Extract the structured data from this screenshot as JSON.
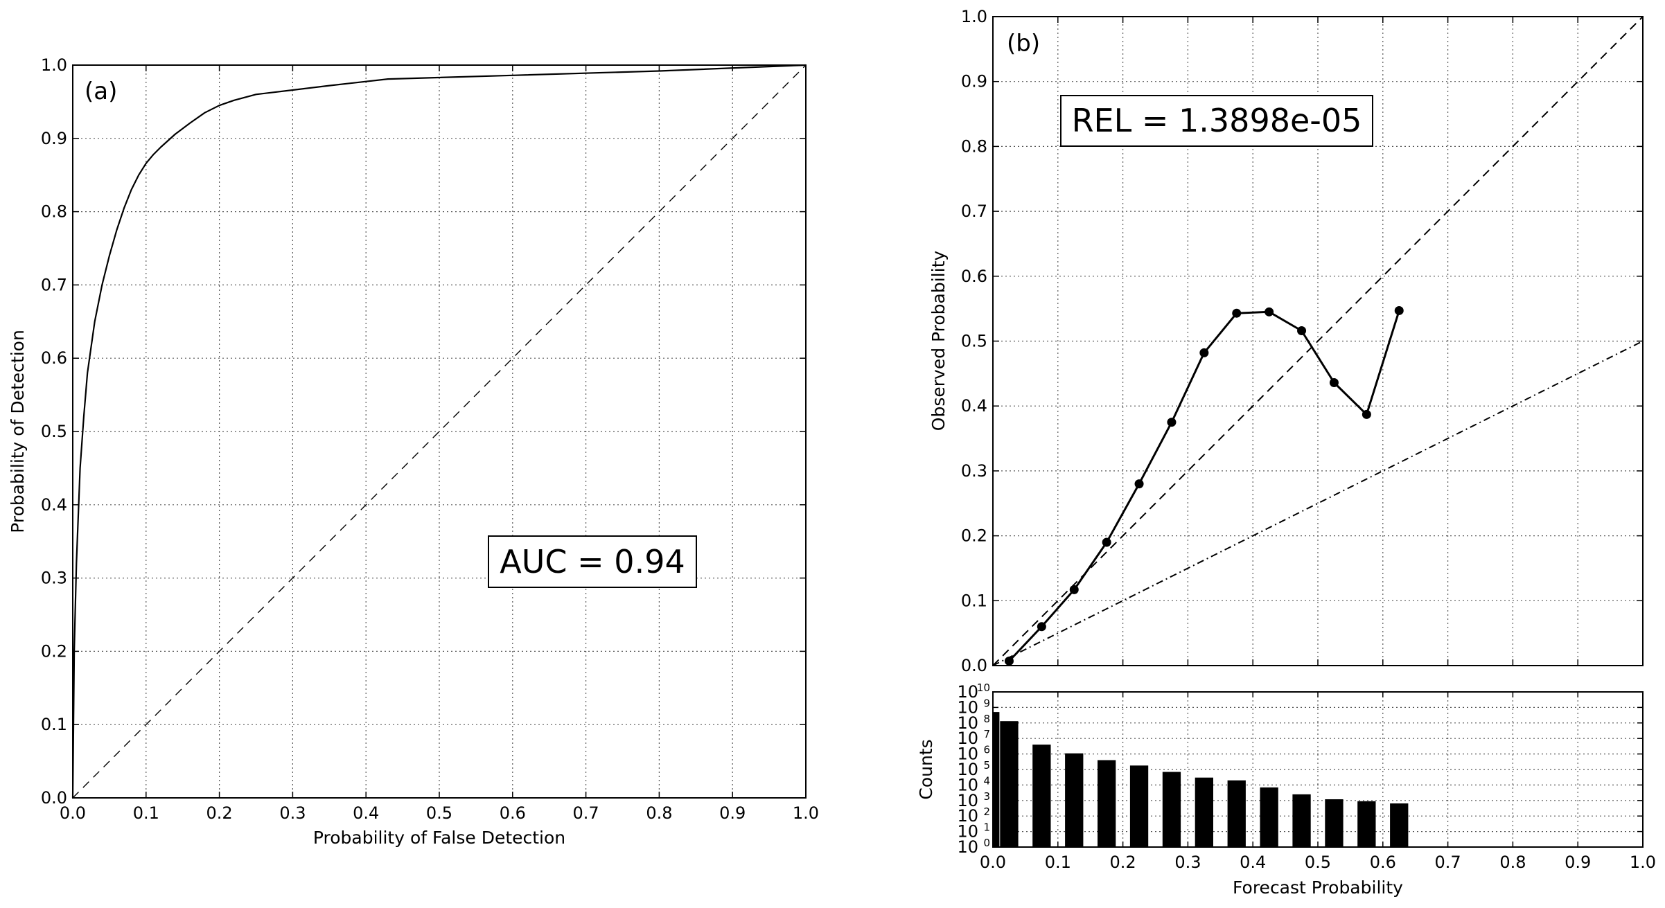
{
  "chart_data": [
    {
      "panel": "(a)",
      "type": "line",
      "xlabel": "Probability of False Detection",
      "ylabel": "Probability of Detection",
      "xlim": [
        0.0,
        1.0
      ],
      "ylim": [
        0.0,
        1.0
      ],
      "xticks": [
        "0.0",
        "0.1",
        "0.2",
        "0.3",
        "0.4",
        "0.5",
        "0.6",
        "0.7",
        "0.8",
        "0.9",
        "1.0"
      ],
      "yticks": [
        "0.0",
        "0.1",
        "0.2",
        "0.3",
        "0.4",
        "0.5",
        "0.6",
        "0.7",
        "0.8",
        "0.9",
        "1.0"
      ],
      "grid": true,
      "annotation": "AUC = 0.94",
      "series": [
        {
          "style": "solid",
          "x": [
            0.0,
            0.002,
            0.005,
            0.01,
            0.015,
            0.02,
            0.03,
            0.04,
            0.05,
            0.06,
            0.07,
            0.08,
            0.09,
            0.1,
            0.11,
            0.12,
            0.14,
            0.16,
            0.18,
            0.2,
            0.22,
            0.25,
            0.3,
            0.35,
            0.43,
            0.6,
            0.8,
            1.0
          ],
          "y": [
            0.0,
            0.2,
            0.32,
            0.45,
            0.52,
            0.58,
            0.65,
            0.7,
            0.74,
            0.775,
            0.805,
            0.83,
            0.85,
            0.866,
            0.878,
            0.888,
            0.906,
            0.921,
            0.935,
            0.945,
            0.952,
            0.96,
            0.966,
            0.972,
            0.981,
            0.986,
            0.992,
            1.0
          ]
        },
        {
          "style": "dashed",
          "x": [
            0.0,
            1.0
          ],
          "y": [
            0.0,
            1.0
          ]
        }
      ]
    },
    {
      "panel": "(b)",
      "type": "line",
      "ylabel": "Observed Probability",
      "xlim": [
        0.0,
        1.0
      ],
      "ylim": [
        0.0,
        1.0
      ],
      "yticks": [
        "0.0",
        "0.1",
        "0.2",
        "0.3",
        "0.4",
        "0.5",
        "0.6",
        "0.7",
        "0.8",
        "0.9",
        "1.0"
      ],
      "grid": true,
      "annotation": "REL = 1.3898e-05",
      "series": [
        {
          "style": "solid-markers",
          "x": [
            0.025,
            0.075,
            0.125,
            0.175,
            0.225,
            0.275,
            0.325,
            0.375,
            0.425,
            0.475,
            0.525,
            0.575,
            0.625
          ],
          "y": [
            0.007,
            0.06,
            0.117,
            0.19,
            0.28,
            0.375,
            0.482,
            0.543,
            0.545,
            0.516,
            0.436,
            0.387,
            0.547
          ]
        },
        {
          "style": "dashed",
          "x": [
            0.0,
            1.0
          ],
          "y": [
            0.0,
            1.0
          ]
        },
        {
          "style": "dashdot",
          "x": [
            0.0,
            1.0
          ],
          "y": [
            0.0,
            0.5
          ]
        }
      ]
    },
    {
      "type": "bar",
      "xlabel": "Forecast Probability",
      "ylabel": "Counts",
      "xlim": [
        0.0,
        1.0
      ],
      "xticks": [
        "0.0",
        "0.1",
        "0.2",
        "0.3",
        "0.4",
        "0.5",
        "0.6",
        "0.7",
        "0.8",
        "0.9",
        "1.0"
      ],
      "yscale": "log",
      "ylim": [
        1,
        10000000000
      ],
      "ytick_base": "10",
      "ytick_exponents": [
        "0",
        "1",
        "2",
        "3",
        "4",
        "5",
        "6",
        "7",
        "8",
        "9",
        "10"
      ],
      "grid": true,
      "bars": [
        {
          "x": 0.005,
          "count": 500000000
        },
        {
          "x": 0.025,
          "count": 130000000
        },
        {
          "x": 0.075,
          "count": 4000000
        },
        {
          "x": 0.125,
          "count": 1100000
        },
        {
          "x": 0.175,
          "count": 400000
        },
        {
          "x": 0.225,
          "count": 180000
        },
        {
          "x": 0.275,
          "count": 70000
        },
        {
          "x": 0.325,
          "count": 30000
        },
        {
          "x": 0.375,
          "count": 20000
        },
        {
          "x": 0.425,
          "count": 7000
        },
        {
          "x": 0.475,
          "count": 2500
        },
        {
          "x": 0.525,
          "count": 1200
        },
        {
          "x": 0.575,
          "count": 900
        },
        {
          "x": 0.625,
          "count": 650
        }
      ]
    }
  ]
}
